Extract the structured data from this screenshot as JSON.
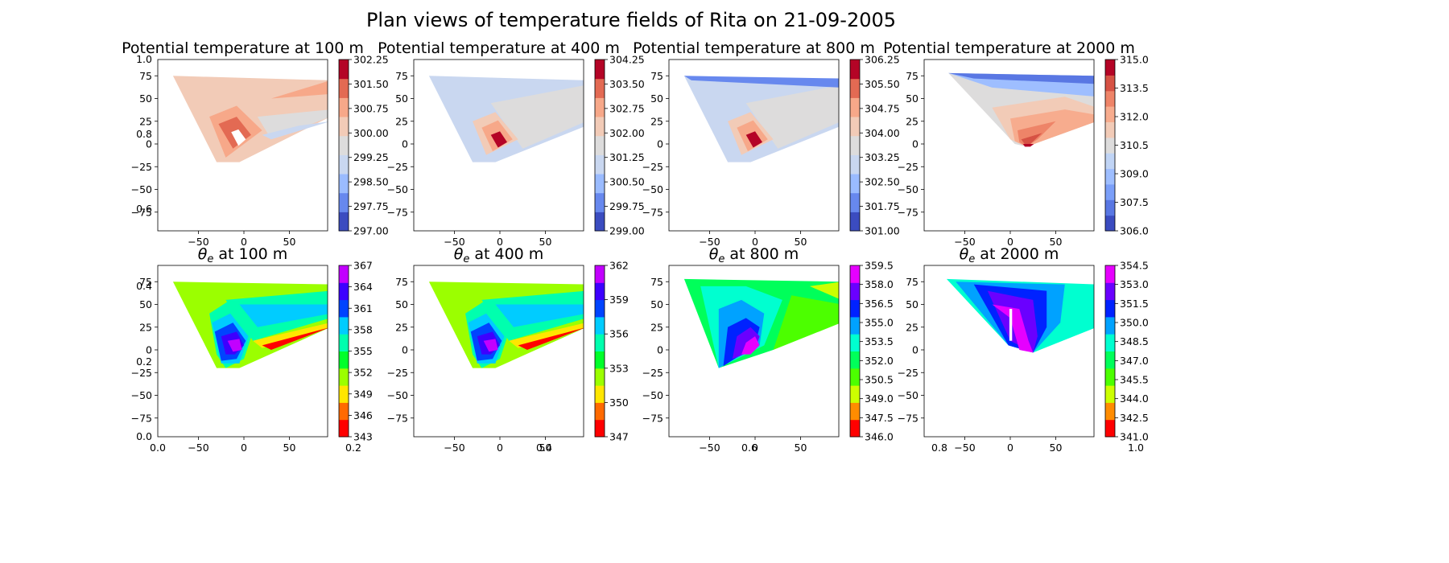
{
  "figure": {
    "title": "Plan views of temperature fields of Rita on 21-09-2005"
  },
  "chart_data": [
    {
      "type": "heatmap",
      "title": "Potential temperature at 100 m",
      "xticks": [
        "−50",
        "0",
        "50"
      ],
      "yticks": [
        "75",
        "50",
        "25",
        "0",
        "−25",
        "−50",
        "−75"
      ],
      "colorbar_ticks": [
        "302.25",
        "301.50",
        "300.75",
        "300.00",
        "299.25",
        "298.50",
        "297.75",
        "297.00"
      ],
      "colorbar_colors": [
        "#3b4cc0",
        "#6788ee",
        "#9abbff",
        "#c9d7f0",
        "#dddcdc",
        "#f2cbb7",
        "#f7a889",
        "#e36a53",
        "#b40426"
      ],
      "extra_ticks": [
        "1.0",
        "0.8",
        "0.6"
      ],
      "field": "theta"
    },
    {
      "type": "heatmap",
      "title": "Potential temperature at 400 m",
      "xticks": [
        "−50",
        "0",
        "50"
      ],
      "yticks": [
        "75",
        "50",
        "25",
        "0",
        "−25",
        "−50",
        "−75"
      ],
      "colorbar_ticks": [
        "304.25",
        "303.50",
        "302.75",
        "302.00",
        "301.25",
        "300.50",
        "299.75",
        "299.00"
      ],
      "colorbar_colors": [
        "#3b4cc0",
        "#6788ee",
        "#9abbff",
        "#c9d7f0",
        "#dddcdc",
        "#f2cbb7",
        "#f7a889",
        "#e36a53",
        "#b40426"
      ],
      "extra_ticks": [],
      "field": "theta"
    },
    {
      "type": "heatmap",
      "title": "Potential temperature at 800 m",
      "xticks": [
        "−50",
        "0",
        "50"
      ],
      "yticks": [
        "75",
        "50",
        "25",
        "0",
        "−25",
        "−50",
        "−75"
      ],
      "colorbar_ticks": [
        "306.25",
        "305.50",
        "304.75",
        "304.00",
        "303.25",
        "302.50",
        "301.75",
        "301.00"
      ],
      "colorbar_colors": [
        "#3b4cc0",
        "#6788ee",
        "#9abbff",
        "#c9d7f0",
        "#dddcdc",
        "#f2cbb7",
        "#f7a889",
        "#e36a53",
        "#b40426"
      ],
      "extra_ticks": [],
      "field": "theta"
    },
    {
      "type": "heatmap",
      "title": "Potential temperature at 2000 m",
      "xticks": [
        "−50",
        "0",
        "50"
      ],
      "yticks": [
        "75",
        "50",
        "25",
        "0",
        "−25",
        "−50",
        "−75"
      ],
      "colorbar_ticks": [
        "315.0",
        "313.5",
        "312.0",
        "310.5",
        "309.0",
        "307.5",
        "306.0"
      ],
      "colorbar_colors": [
        "#3b4cc0",
        "#5977e3",
        "#7b9ff9",
        "#9ebeff",
        "#c0d4f5",
        "#dddcdc",
        "#f2cbb7",
        "#f7ac8e",
        "#ee8468",
        "#d65244",
        "#b40426"
      ],
      "extra_ticks": [],
      "field": "theta"
    },
    {
      "type": "heatmap",
      "title": "θe at 100 m",
      "title_base": "θ",
      "title_sub": "e",
      "title_rest": " at 100 m",
      "xticks": [
        "−50",
        "0",
        "50"
      ],
      "yticks": [
        "75",
        "50",
        "25",
        "0",
        "−25",
        "−50",
        "−75"
      ],
      "colorbar_ticks": [
        "367",
        "364",
        "361",
        "358",
        "355",
        "352",
        "349",
        "346",
        "343"
      ],
      "colorbar_colors": [
        "#ff0000",
        "#ff6a00",
        "#ffe600",
        "#9bff00",
        "#00ff2a",
        "#00ffae",
        "#00ccff",
        "#0044ff",
        "#3d00ff",
        "#c200ff"
      ],
      "extra_ticks": [
        "0.4",
        "0.2",
        "0.0",
        "0.0",
        "0.2"
      ],
      "field": "thetae"
    },
    {
      "type": "heatmap",
      "title": "θe at 400 m",
      "title_base": "θ",
      "title_sub": "e",
      "title_rest": " at 400 m",
      "xticks": [
        "−50",
        "0",
        "50"
      ],
      "yticks": [
        "75",
        "50",
        "25",
        "0",
        "−25",
        "−50",
        "−75"
      ],
      "colorbar_ticks": [
        "362",
        "359",
        "356",
        "353",
        "350",
        "347"
      ],
      "colorbar_colors": [
        "#ff0000",
        "#ff6a00",
        "#ffe600",
        "#9bff00",
        "#00ff2a",
        "#00ffae",
        "#00ccff",
        "#0044ff",
        "#3d00ff",
        "#c200ff"
      ],
      "extra_ticks": [
        "0.4"
      ],
      "field": "thetae"
    },
    {
      "type": "heatmap",
      "title": "θe at 800 m",
      "title_base": "θ",
      "title_sub": "e",
      "title_rest": " at 800 m",
      "xticks": [
        "−50",
        "0",
        "50"
      ],
      "yticks": [
        "75",
        "50",
        "25",
        "0",
        "−25",
        "−50",
        "−75"
      ],
      "colorbar_ticks": [
        "359.5",
        "358.0",
        "356.5",
        "355.0",
        "353.5",
        "352.0",
        "350.5",
        "349.0",
        "347.5",
        "346.0"
      ],
      "colorbar_colors": [
        "#ff0000",
        "#ff8c00",
        "#ccff00",
        "#4cff00",
        "#00ff5a",
        "#00ffd0",
        "#00a2ff",
        "#0022ff",
        "#6a00ff",
        "#e600ff"
      ],
      "extra_ticks": [
        "0.6"
      ],
      "field": "thetae"
    },
    {
      "type": "heatmap",
      "title": "θe at 2000 m",
      "title_base": "θ",
      "title_sub": "e",
      "title_rest": " at 2000 m",
      "xticks": [
        "−50",
        "0",
        "50"
      ],
      "yticks": [
        "75",
        "50",
        "25",
        "0",
        "−25",
        "−50",
        "−75"
      ],
      "colorbar_ticks": [
        "354.5",
        "353.0",
        "351.5",
        "350.0",
        "348.5",
        "347.0",
        "345.5",
        "344.0",
        "342.5",
        "341.0"
      ],
      "colorbar_colors": [
        "#ff0000",
        "#ff8c00",
        "#ccff00",
        "#4cff00",
        "#00ff5a",
        "#00ffd0",
        "#00a2ff",
        "#0022ff",
        "#6a00ff",
        "#e600ff"
      ],
      "extra_ticks": [
        "0.8",
        "1.0"
      ],
      "field": "thetae"
    }
  ]
}
